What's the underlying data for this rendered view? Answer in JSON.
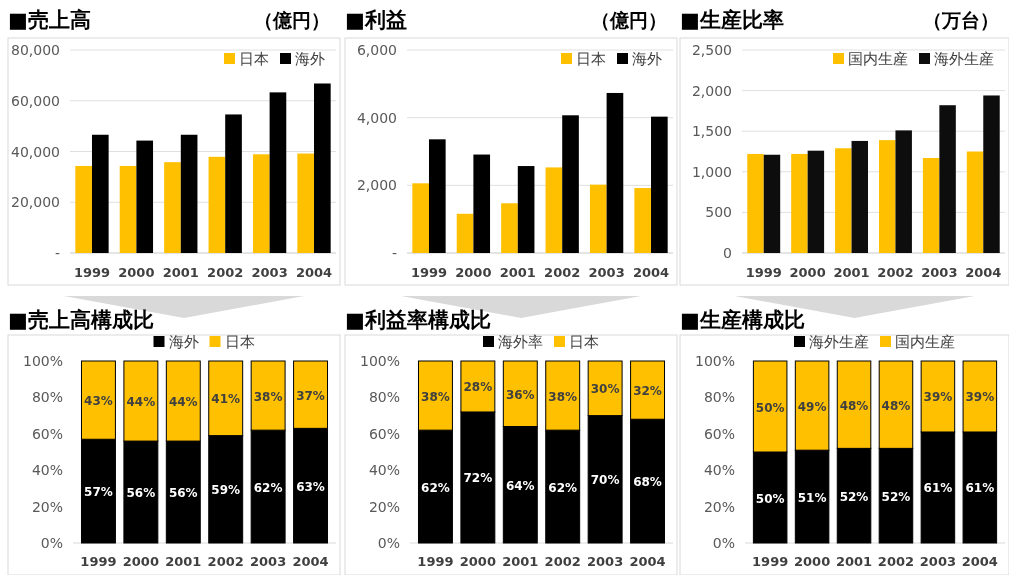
{
  "chart_data": [
    {
      "type": "bar",
      "title": "■売上高",
      "ylabel": "（億円）",
      "categories": [
        "1999",
        "2000",
        "2001",
        "2002",
        "2003",
        "2004"
      ],
      "series": [
        {
          "name": "日本",
          "color": "#ffc000",
          "values": [
            34300,
            34300,
            35800,
            37900,
            38900,
            39200
          ]
        },
        {
          "name": "海外",
          "color": "#000000",
          "values": [
            46600,
            44300,
            46600,
            54600,
            63300,
            66800
          ]
        }
      ],
      "ylim": [
        0,
        80000
      ],
      "yticks": [
        {
          "value": 0,
          "label": "-"
        },
        {
          "value": 20000,
          "label": "20,000"
        },
        {
          "value": 40000,
          "label": "40,000"
        },
        {
          "value": 60000,
          "label": "60,000"
        },
        {
          "value": 80000,
          "label": "80,000"
        }
      ],
      "grid": "y",
      "legend": "top right"
    },
    {
      "type": "bar",
      "title": "■利益",
      "ylabel": "（億円）",
      "categories": [
        "1999",
        "2000",
        "2001",
        "2002",
        "2003",
        "2004"
      ],
      "series": [
        {
          "name": "日本",
          "color": "#ffc000",
          "values": [
            2060,
            1160,
            1470,
            2530,
            2020,
            1920
          ]
        },
        {
          "name": "海外",
          "color": "#000000",
          "values": [
            3360,
            2910,
            2570,
            4070,
            4730,
            4030
          ]
        }
      ],
      "ylim": [
        0,
        6000
      ],
      "yticks": [
        {
          "value": 0,
          "label": "-"
        },
        {
          "value": 2000,
          "label": "2,000"
        },
        {
          "value": 4000,
          "label": "4,000"
        },
        {
          "value": 6000,
          "label": "6,000"
        }
      ],
      "grid": "y",
      "legend": "top right"
    },
    {
      "type": "bar",
      "title": "■生産比率",
      "ylabel": "（万台）",
      "categories": [
        "1999",
        "2000",
        "2001",
        "2002",
        "2003",
        "2004"
      ],
      "series": [
        {
          "name": "国内生産",
          "color": "#ffc000",
          "values": [
            1220,
            1220,
            1290,
            1390,
            1170,
            1250
          ]
        },
        {
          "name": "海外生産",
          "color": "#0d0d0d",
          "values": [
            1210,
            1260,
            1380,
            1510,
            1820,
            1940
          ]
        }
      ],
      "ylim": [
        0,
        2500
      ],
      "yticks": [
        0,
        {
          "value": 500,
          "label": "500"
        },
        {
          "value": 1000,
          "label": "1,000"
        },
        {
          "value": 1500,
          "label": "1,500"
        },
        {
          "value": 2000,
          "label": "2,000"
        },
        {
          "value": 2500,
          "label": "2,500"
        }
      ],
      "grid": "y",
      "legend": "top right"
    },
    {
      "type": "bar",
      "title": "■売上高構成比",
      "stacked": true,
      "categories": [
        "1999",
        "2000",
        "2001",
        "2002",
        "2003",
        "2004"
      ],
      "series": [
        {
          "name": "海外",
          "color": "#000000",
          "values": [
            57,
            56,
            56,
            59,
            62,
            63
          ],
          "value_labels": [
            "57%",
            "56%",
            "56%",
            "59%",
            "62%",
            "63%"
          ]
        },
        {
          "name": "日本",
          "color": "#ffc000",
          "values": [
            43,
            44,
            44,
            41,
            38,
            37
          ],
          "value_labels": [
            "43%",
            "44%",
            "44%",
            "41%",
            "38%",
            "37%"
          ]
        }
      ],
      "ylim": [
        0,
        100
      ],
      "yticks": [
        {
          "value": 0,
          "label": "0%"
        },
        {
          "value": 20,
          "label": "20%"
        },
        {
          "value": 40,
          "label": "40%"
        },
        {
          "value": 60,
          "label": "60%"
        },
        {
          "value": 80,
          "label": "80%"
        },
        {
          "value": 100,
          "label": "100%"
        }
      ],
      "legend": "top"
    },
    {
      "type": "bar",
      "title": "■利益率構成比",
      "stacked": true,
      "categories": [
        "1999",
        "2000",
        "2001",
        "2002",
        "2003",
        "2004"
      ],
      "series": [
        {
          "name": "海外率",
          "color": "#000000",
          "values": [
            62,
            72,
            64,
            62,
            70,
            68
          ],
          "value_labels": [
            "62%",
            "72%",
            "64%",
            "62%",
            "70%",
            "68%"
          ]
        },
        {
          "name": "日本",
          "color": "#ffc000",
          "values": [
            38,
            28,
            36,
            38,
            30,
            32
          ],
          "value_labels": [
            "38%",
            "28%",
            "36%",
            "38%",
            "30%",
            "32%"
          ]
        }
      ],
      "ylim": [
        0,
        100
      ],
      "yticks": [
        {
          "value": 0,
          "label": "0%"
        },
        {
          "value": 20,
          "label": "20%"
        },
        {
          "value": 40,
          "label": "40%"
        },
        {
          "value": 60,
          "label": "60%"
        },
        {
          "value": 80,
          "label": "80%"
        },
        {
          "value": 100,
          "label": "100%"
        }
      ],
      "legend": "top"
    },
    {
      "type": "bar",
      "title": "■生産構成比",
      "stacked": true,
      "categories": [
        "1999",
        "2000",
        "2001",
        "2002",
        "2003",
        "2004"
      ],
      "series": [
        {
          "name": "海外生産",
          "color": "#000000",
          "values": [
            50,
            51,
            52,
            52,
            61,
            61
          ],
          "value_labels": [
            "50%",
            "51%",
            "52%",
            "52%",
            "61%",
            "61%"
          ]
        },
        {
          "name": "国内生産",
          "color": "#ffc000",
          "values": [
            50,
            49,
            48,
            48,
            39,
            39
          ],
          "value_labels": [
            "50%",
            "49%",
            "48%",
            "48%",
            "39%",
            "39%"
          ]
        }
      ],
      "ylim": [
        0,
        100
      ],
      "yticks": [
        {
          "value": 0,
          "label": "0%"
        },
        {
          "value": 20,
          "label": "20%"
        },
        {
          "value": 40,
          "label": "40%"
        },
        {
          "value": 60,
          "label": "60%"
        },
        {
          "value": 80,
          "label": "80%"
        },
        {
          "value": 100,
          "label": "100%"
        }
      ],
      "legend": "top"
    }
  ]
}
